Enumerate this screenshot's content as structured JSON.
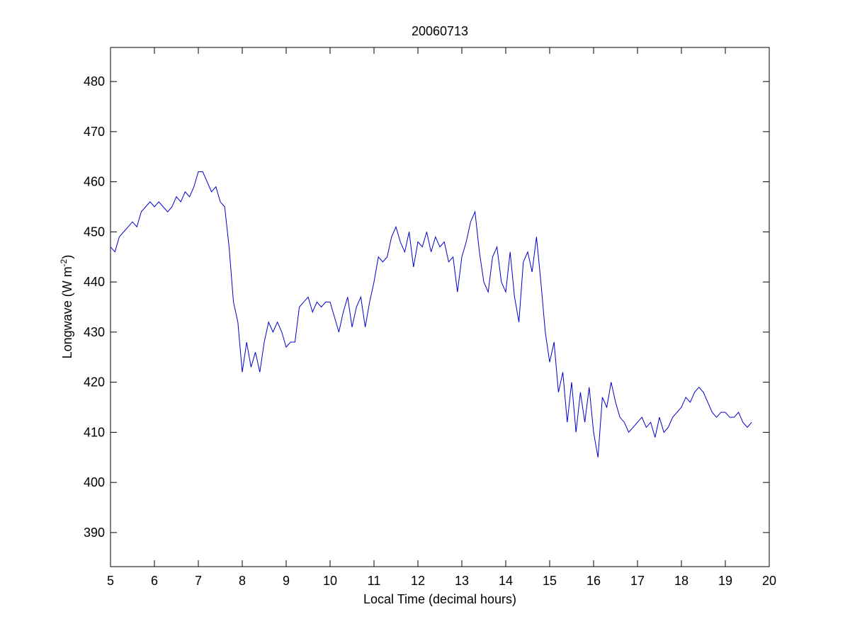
{
  "chart_data": {
    "type": "line",
    "title": "20060713",
    "xlabel": "Local Time (decimal hours)",
    "ylabel": {
      "text": "Longwave (W m",
      "superscript": "-2",
      "suffix": ")"
    },
    "x": [
      5.0,
      5.1,
      5.2,
      5.3,
      5.4,
      5.5,
      5.6,
      5.7,
      5.8,
      5.9,
      6.0,
      6.1,
      6.2,
      6.3,
      6.4,
      6.5,
      6.6,
      6.7,
      6.8,
      6.9,
      7.0,
      7.1,
      7.2,
      7.3,
      7.4,
      7.5,
      7.6,
      7.7,
      7.8,
      7.9,
      8.0,
      8.1,
      8.2,
      8.3,
      8.4,
      8.5,
      8.6,
      8.7,
      8.8,
      8.9,
      9.0,
      9.1,
      9.2,
      9.3,
      9.4,
      9.5,
      9.6,
      9.7,
      9.8,
      9.9,
      10.0,
      10.1,
      10.2,
      10.3,
      10.4,
      10.5,
      10.6,
      10.7,
      10.8,
      10.9,
      11.0,
      11.1,
      11.2,
      11.3,
      11.4,
      11.5,
      11.6,
      11.7,
      11.8,
      11.9,
      12.0,
      12.1,
      12.2,
      12.3,
      12.4,
      12.5,
      12.6,
      12.7,
      12.8,
      12.9,
      13.0,
      13.1,
      13.2,
      13.3,
      13.4,
      13.5,
      13.6,
      13.7,
      13.8,
      13.9,
      14.0,
      14.1,
      14.2,
      14.3,
      14.4,
      14.5,
      14.6,
      14.7,
      14.8,
      14.9,
      15.0,
      15.1,
      15.2,
      15.3,
      15.4,
      15.5,
      15.6,
      15.7,
      15.8,
      15.9,
      16.0,
      16.1,
      16.2,
      16.3,
      16.4,
      16.5,
      16.6,
      16.7,
      16.8,
      16.9,
      17.0,
      17.1,
      17.2,
      17.3,
      17.4,
      17.5,
      17.6,
      17.7,
      17.8,
      17.9,
      18.0,
      18.1,
      18.2,
      18.3,
      18.4,
      18.5,
      18.6,
      18.7,
      18.8,
      18.9,
      19.0,
      19.1,
      19.2,
      19.3,
      19.4,
      19.5,
      19.6
    ],
    "series": [
      {
        "color": "#0000cc",
        "values": [
          447,
          446,
          449,
          450,
          451,
          452,
          451,
          454,
          455,
          456,
          455,
          456,
          455,
          454,
          455,
          457,
          456,
          458,
          457,
          459,
          462,
          462,
          460,
          458,
          459,
          456,
          455,
          447,
          436,
          432,
          422,
          428,
          423,
          426,
          422,
          428,
          432,
          430,
          432,
          430,
          427,
          428,
          428,
          435,
          436,
          437,
          434,
          436,
          435,
          436,
          436,
          433,
          430,
          434,
          437,
          431,
          435,
          437,
          431,
          436,
          440,
          445,
          444,
          445,
          449,
          451,
          448,
          446,
          450,
          443,
          448,
          447,
          450,
          446,
          449,
          447,
          448,
          444,
          445,
          438,
          445,
          448,
          452,
          454,
          446,
          440,
          438,
          445,
          447,
          440,
          438,
          446,
          437,
          432,
          444,
          446,
          442,
          449,
          440,
          430,
          424,
          428,
          418,
          422,
          412,
          420,
          410,
          418,
          412,
          419,
          410,
          405,
          417,
          415,
          420,
          416,
          413,
          412,
          410,
          411,
          412,
          413,
          411,
          412,
          409,
          413,
          410,
          411,
          413,
          414,
          415,
          417,
          416,
          418,
          419,
          418,
          416,
          414,
          413,
          414,
          414,
          413,
          413,
          414,
          412,
          411,
          412
        ]
      }
    ],
    "xlim": [
      5,
      20
    ],
    "xticks": [
      5,
      6,
      7,
      8,
      9,
      10,
      11,
      12,
      13,
      14,
      15,
      16,
      17,
      18,
      19,
      20
    ],
    "ylim": [
      383.2,
      486.8
    ],
    "yticks": [
      390,
      400,
      410,
      420,
      430,
      440,
      450,
      460,
      470,
      480
    ],
    "grid": false
  }
}
